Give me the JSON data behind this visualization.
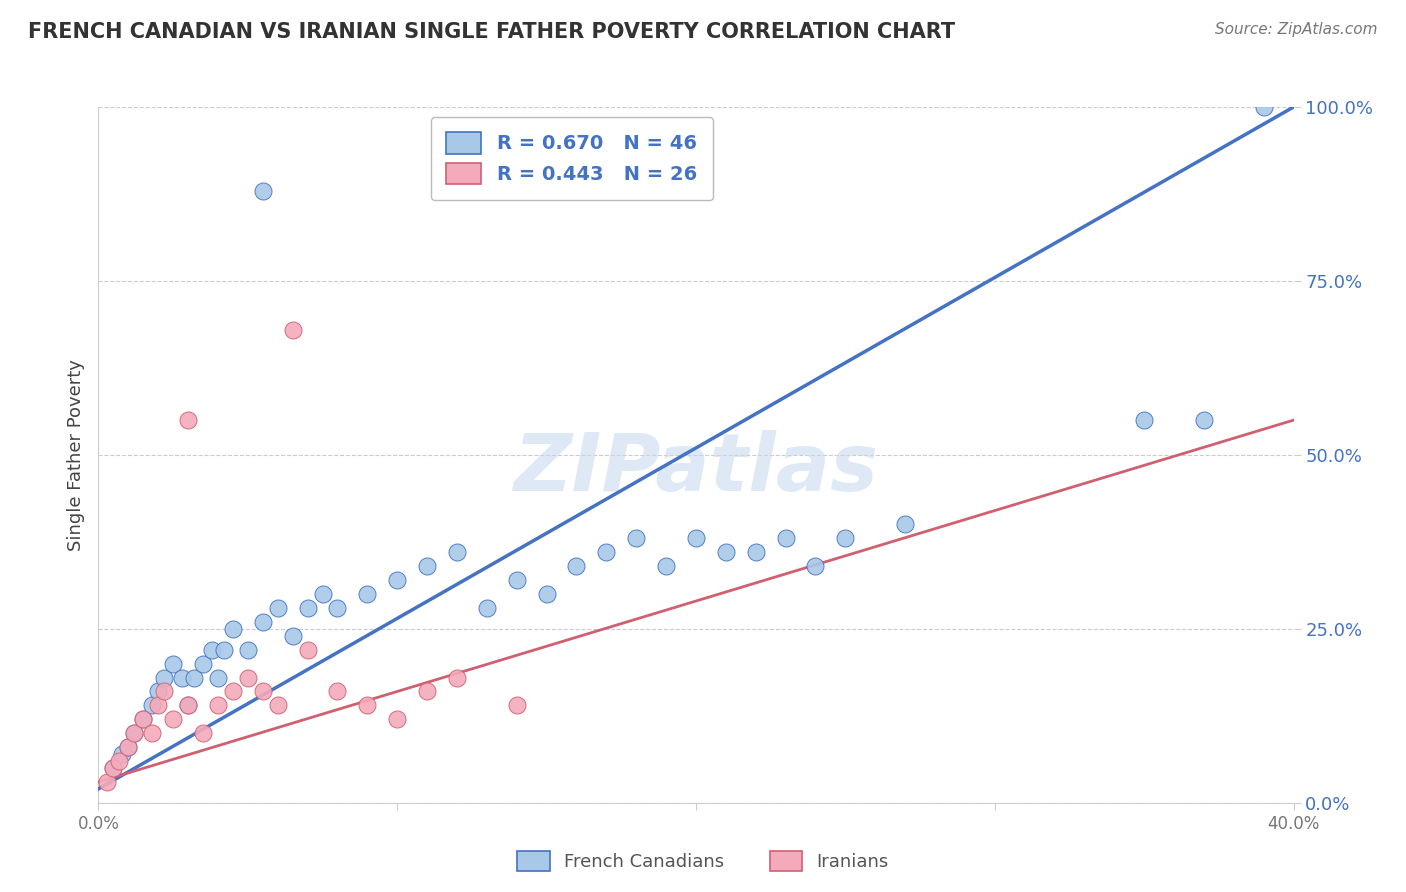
{
  "title": "FRENCH CANADIAN VS IRANIAN SINGLE FATHER POVERTY CORRELATION CHART",
  "source": "Source: ZipAtlas.com",
  "ylabel": "Single Father Poverty",
  "yticks": [
    "0.0%",
    "25.0%",
    "50.0%",
    "75.0%",
    "100.0%"
  ],
  "ytick_vals": [
    0,
    25,
    50,
    75,
    100
  ],
  "xtick_vals": [
    0,
    10,
    20,
    30,
    40
  ],
  "xtick_labels": [
    "0.0%",
    "",
    "",
    "",
    "40.0%"
  ],
  "xlim": [
    0,
    40
  ],
  "ylim": [
    0,
    100
  ],
  "legend_blue_r": "R = 0.670",
  "legend_blue_n": "N = 46",
  "legend_pink_r": "R = 0.443",
  "legend_pink_n": "N = 26",
  "blue_color": "#a8c8e8",
  "pink_color": "#f4aabb",
  "line_blue": "#4472c4",
  "line_pink": "#d06070",
  "watermark": "ZIPatlas",
  "blue_points_x": [
    0.5,
    0.8,
    1.0,
    1.2,
    1.5,
    1.8,
    2.0,
    2.2,
    2.5,
    2.8,
    3.0,
    3.2,
    3.5,
    3.8,
    4.0,
    4.2,
    4.5,
    5.0,
    5.5,
    6.0,
    6.5,
    7.0,
    7.5,
    8.0,
    9.0,
    10.0,
    11.0,
    12.0,
    13.0,
    14.0,
    15.0,
    16.0,
    17.0,
    18.0,
    19.0,
    20.0,
    21.0,
    22.0,
    23.0,
    24.0,
    25.0,
    27.0,
    35.0,
    37.0,
    39.0,
    5.5
  ],
  "blue_points_y": [
    5,
    7,
    8,
    10,
    12,
    14,
    16,
    18,
    20,
    18,
    14,
    18,
    20,
    22,
    18,
    22,
    25,
    22,
    26,
    28,
    24,
    28,
    30,
    28,
    30,
    32,
    34,
    36,
    28,
    32,
    30,
    34,
    36,
    38,
    34,
    38,
    36,
    36,
    38,
    34,
    38,
    40,
    55,
    55,
    100,
    88
  ],
  "pink_points_x": [
    0.3,
    0.5,
    0.7,
    1.0,
    1.2,
    1.5,
    1.8,
    2.0,
    2.2,
    2.5,
    3.0,
    3.5,
    4.0,
    4.5,
    5.0,
    5.5,
    6.0,
    7.0,
    8.0,
    9.0,
    10.0,
    11.0,
    12.0,
    14.0,
    3.0,
    6.5
  ],
  "pink_points_y": [
    3,
    5,
    6,
    8,
    10,
    12,
    10,
    14,
    16,
    12,
    14,
    10,
    14,
    16,
    18,
    16,
    14,
    22,
    16,
    14,
    12,
    16,
    18,
    14,
    55,
    68
  ],
  "blue_line_x": [
    0,
    40
  ],
  "blue_line_y": [
    2,
    100
  ],
  "pink_line_x": [
    0,
    40
  ],
  "pink_line_y": [
    3,
    55
  ]
}
